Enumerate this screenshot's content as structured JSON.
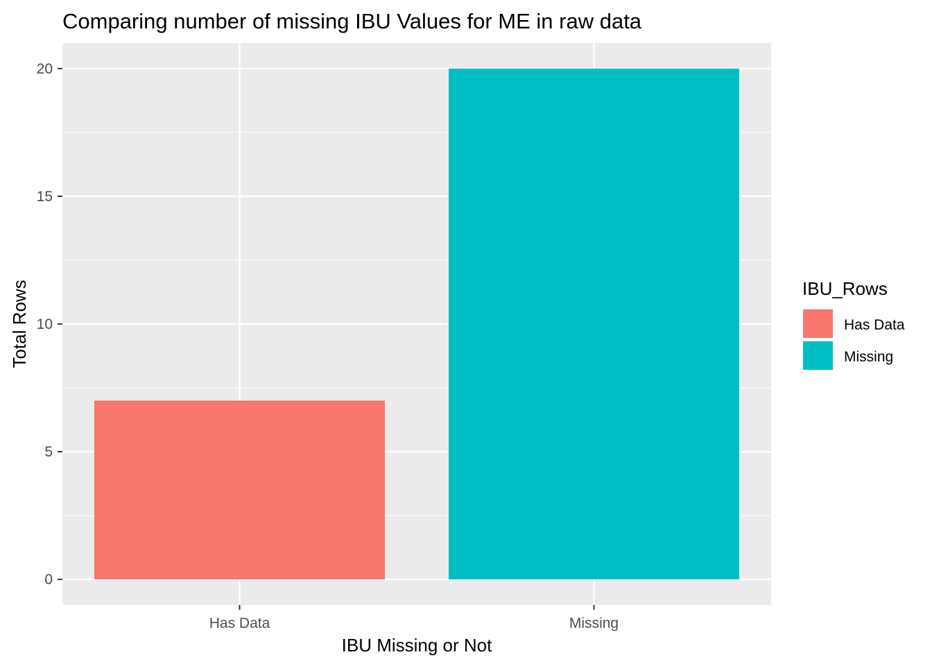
{
  "chart_data": {
    "type": "bar",
    "title": "Comparing number of missing IBU Values for ME in raw data",
    "xlabel": "IBU Missing or Not",
    "ylabel": "Total Rows",
    "categories": [
      "Has Data",
      "Missing"
    ],
    "values": [
      7,
      20
    ],
    "colors": [
      "#F8766D",
      "#00BFC4"
    ],
    "ylim": [
      -1,
      21
    ],
    "yticks": [
      0,
      5,
      10,
      15,
      20
    ],
    "grid": true,
    "legend": {
      "title": "IBU_Rows",
      "placement": "right",
      "entries": [
        {
          "label": "Has Data",
          "color": "#F8766D"
        },
        {
          "label": "Missing",
          "color": "#00BFC4"
        }
      ]
    },
    "panel_background": "#EBEBEB",
    "grid_color": "#FFFFFF"
  }
}
